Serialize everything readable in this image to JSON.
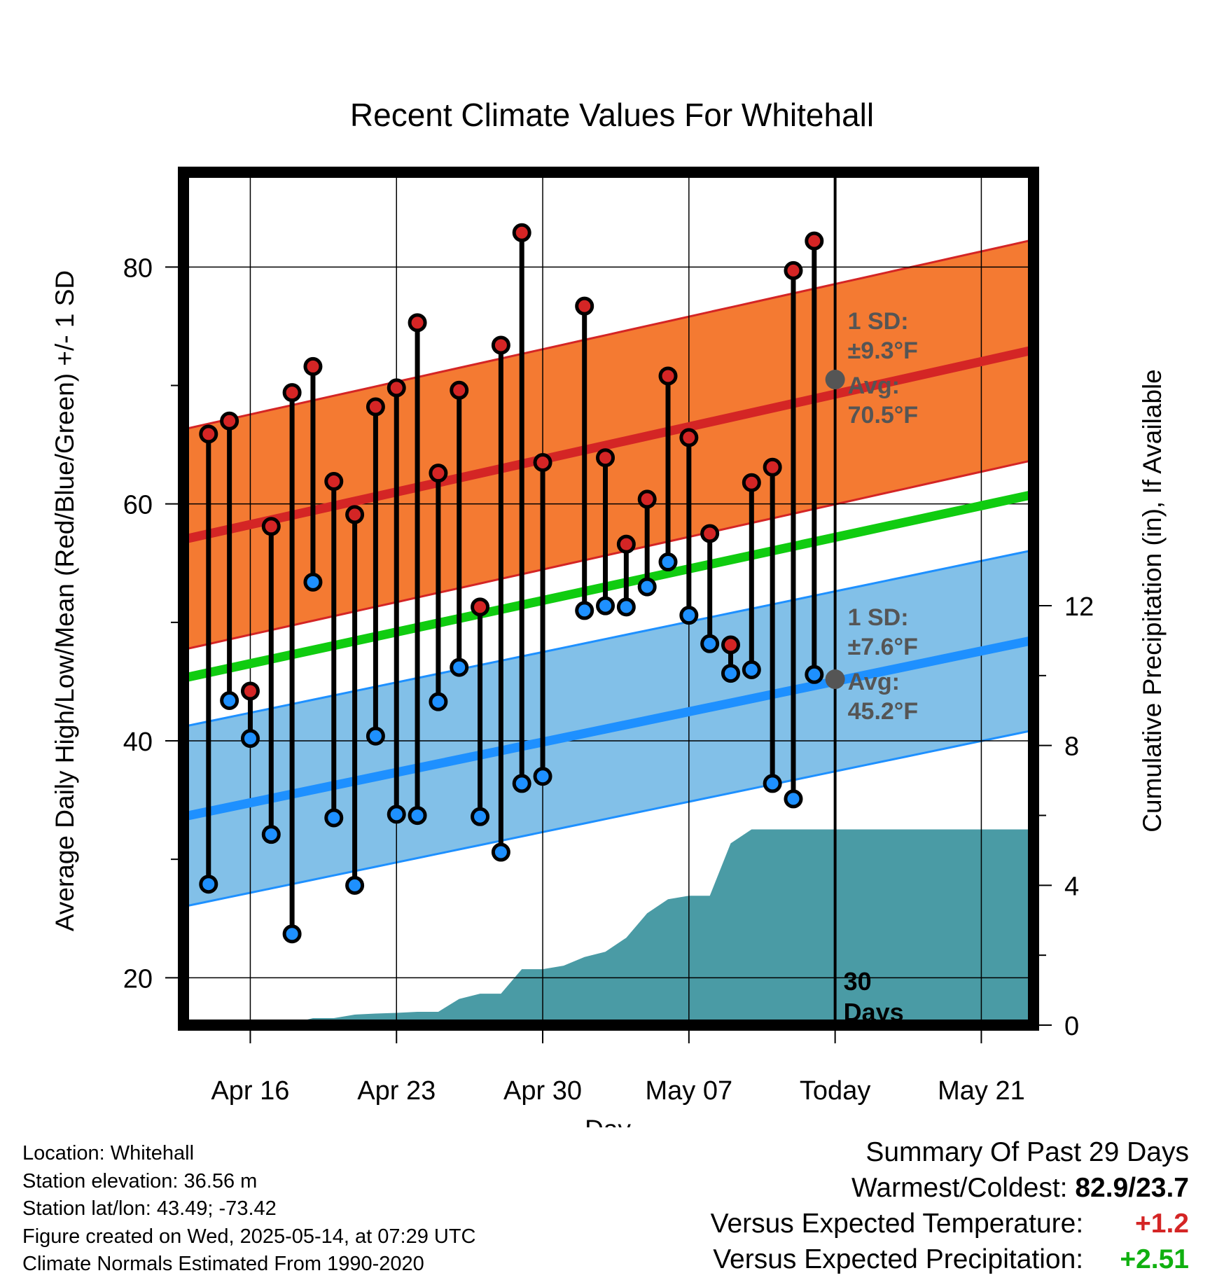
{
  "chart_data": {
    "type": "line",
    "title": "Recent Climate Values For Whitehall",
    "xlabel": "Day",
    "ylabel_left": "Average Daily High/Low/Mean (Red/Blue/Green) +/- 1 SD",
    "ylabel_right": "Cumulative Precipitation (in), If Available",
    "x_ticks": [
      "Apr 16",
      "Apr 23",
      "Apr 30",
      "May 07",
      "Today",
      "May 21"
    ],
    "x_tick_day_index": [
      4,
      11,
      18,
      25,
      32,
      39
    ],
    "x_range_days": [
      0.8,
      41.5
    ],
    "ylim_left": [
      16,
      88
    ],
    "ylim_right": [
      0,
      24.4
    ],
    "y_ticks_left": [
      20,
      40,
      60,
      80
    ],
    "y_ticks_right": [
      0,
      4,
      8,
      12
    ],
    "grid": true,
    "today_day_index": 32,
    "today_label": [
      "30",
      "Days"
    ],
    "daily_observations": {
      "day_index": [
        2,
        3,
        4,
        5,
        6,
        7,
        8,
        9,
        10,
        11,
        12,
        13,
        14,
        15,
        16,
        17,
        18,
        19,
        20,
        21,
        22,
        23,
        24,
        25,
        26,
        27,
        28,
        29,
        30,
        31
      ],
      "high": [
        65.9,
        67.0,
        44.2,
        58.1,
        69.4,
        71.6,
        61.9,
        59.1,
        68.2,
        69.8,
        75.3,
        62.6,
        69.6,
        51.3,
        73.4,
        82.9,
        63.5,
        null,
        76.7,
        63.9,
        56.6,
        60.4,
        70.8,
        65.6,
        57.5,
        48.1,
        61.8,
        63.1,
        79.7,
        82.2
      ],
      "low": [
        27.9,
        43.4,
        40.2,
        32.1,
        23.7,
        53.4,
        33.5,
        27.8,
        40.4,
        33.8,
        33.7,
        43.3,
        46.2,
        33.6,
        30.6,
        36.4,
        37.0,
        null,
        51.0,
        51.4,
        51.3,
        53.0,
        55.1,
        50.6,
        48.2,
        45.7,
        46.0,
        36.4,
        35.1,
        45.6
      ]
    },
    "series": [
      {
        "name": "High",
        "color": "#d42525",
        "start": 57.0,
        "end": 73.0,
        "sd": 9.3,
        "today_avg": 70.5,
        "sd_label": "1 SD:",
        "sd_value": "±9.3°F",
        "avg_label": "Avg:",
        "avg_value": "70.5°F"
      },
      {
        "name": "Mean",
        "color": "#10cc10",
        "start": 45.3,
        "end": 60.8
      },
      {
        "name": "Low",
        "color": "#1e90ff",
        "start": 33.6,
        "end": 48.5,
        "sd": 7.6,
        "today_avg": 45.2,
        "sd_label": "1 SD:",
        "sd_value": "±7.6°F",
        "avg_label": "Avg:",
        "avg_value": "45.2°F"
      }
    ],
    "precipitation": {
      "color": "#4a9ba5",
      "day_index": [
        0.8,
        5,
        6,
        7,
        8,
        9,
        10,
        11,
        12,
        13,
        14,
        15,
        16,
        17,
        18,
        19,
        20,
        21,
        22,
        23,
        24,
        25,
        26,
        27,
        28,
        29,
        30,
        31,
        32,
        41.5
      ],
      "cumulative": [
        0,
        0,
        0.05,
        0.2,
        0.2,
        0.3,
        0.33,
        0.35,
        0.38,
        0.38,
        0.75,
        0.9,
        0.9,
        1.6,
        1.6,
        1.7,
        1.95,
        2.1,
        2.5,
        3.2,
        3.6,
        3.7,
        3.7,
        5.2,
        5.6,
        5.6,
        5.6,
        5.6,
        5.6,
        5.6
      ]
    }
  },
  "footer": {
    "location": "Location: Whitehall",
    "elevation": "Station elevation: 36.56 m",
    "latlon": "Station lat/lon: 43.49; -73.42",
    "created": "Figure created on Wed, 2025-05-14, at 07:29 UTC",
    "normals": "Climate Normals Estimated From 1990-2020"
  },
  "summary": {
    "title": "Summary Of Past 29 Days",
    "warmest_label": "Warmest/Coldest:",
    "warmest_value": "82.9/23.7",
    "temp_label": "Versus Expected Temperature:",
    "temp_value": "+1.2",
    "temp_color": "#d42525",
    "precip_label": "Versus Expected Precipitation:",
    "precip_value": "+2.51",
    "precip_color": "#10b010"
  }
}
